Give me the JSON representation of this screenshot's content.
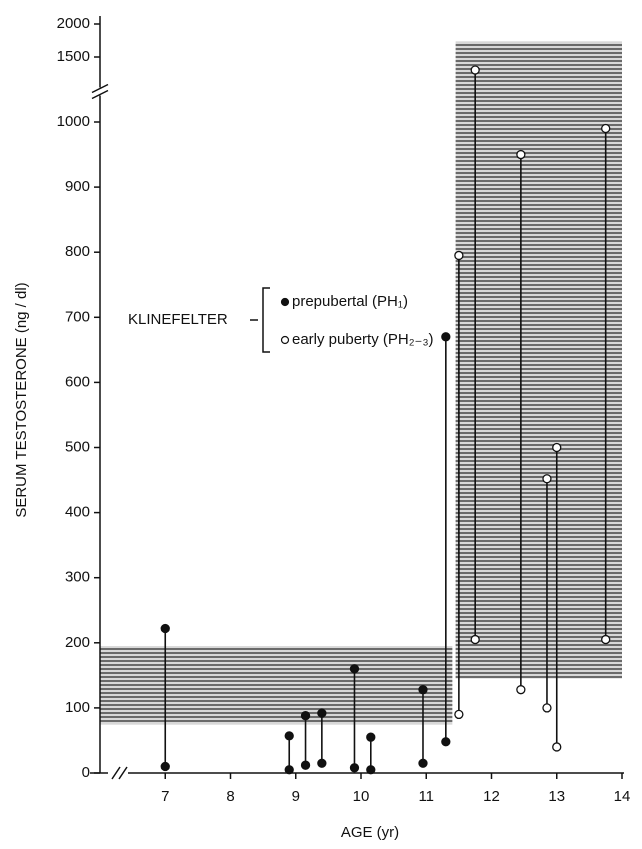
{
  "chart_data": {
    "type": "paired-dot",
    "x_label": "AGE (yr)",
    "y_label": "SERUM TESTOSTERONE (ng / dl)",
    "xlim": [
      6,
      14
    ],
    "xticks": [
      7,
      8,
      9,
      10,
      11,
      12,
      13,
      14
    ],
    "ylim": [
      0,
      2000
    ],
    "y_break": [
      1000,
      1500
    ],
    "yticks": [
      0,
      100,
      200,
      300,
      400,
      500,
      600,
      700,
      800,
      900,
      1000,
      1500,
      2000
    ],
    "legend_title": "KLINEFELTER",
    "shaded_ranges": [
      {
        "x": [
          6,
          11.4
        ],
        "y": [
          75,
          195
        ]
      },
      {
        "x": [
          11.45,
          14
        ],
        "y": [
          145,
          1730
        ]
      }
    ],
    "series": [
      {
        "name": "prepubertal (PH₁)",
        "marker": "filled",
        "x": [
          7,
          8.9,
          9.15,
          9.4,
          9.9,
          10.15,
          10.95,
          11.3
        ],
        "low": [
          10,
          5,
          12,
          15,
          8,
          5,
          15,
          48
        ],
        "high": [
          222,
          57,
          88,
          92,
          160,
          55,
          128,
          670
        ]
      },
      {
        "name": "early puberty (PH₂₋₃)",
        "marker": "open",
        "x": [
          11.5,
          11.75,
          12.45,
          12.85,
          13.0,
          13.75
        ],
        "low": [
          90,
          205,
          128,
          100,
          40,
          205
        ],
        "high": [
          795,
          1400,
          950,
          452,
          500,
          990
        ]
      }
    ]
  }
}
